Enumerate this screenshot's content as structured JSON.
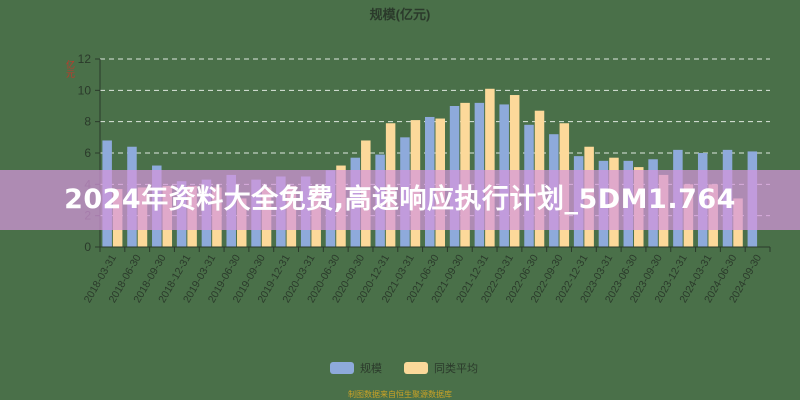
{
  "chart_title": "规模(亿元)",
  "y_unit_label": "亿元",
  "banner": {
    "text": "2024年资料大全免费,高速响应执行计划_5DM1.764"
  },
  "legend": [
    {
      "label": "规模",
      "color": "#8eaadb"
    },
    {
      "label": "同类平均",
      "color": "#fcd99a"
    }
  ],
  "source_text": "制图数据来自恒生聚源数据库",
  "colors": {
    "background": "#4a7049",
    "axis": "#2b3a2b",
    "grid": "#dfe8df",
    "banner": "#d696dc"
  },
  "chart_data": {
    "type": "bar",
    "title": "规模(亿元)",
    "xlabel": "",
    "ylabel": "亿元",
    "ylim": [
      0,
      12
    ],
    "yticks": [
      0,
      2,
      4,
      6,
      8,
      10,
      12
    ],
    "grid": true,
    "legend_position": "bottom",
    "categories": [
      "2018-03-31",
      "2018-06-30",
      "2018-09-30",
      "2018-12-31",
      "2019-03-31",
      "2019-06-30",
      "2019-09-30",
      "2019-12-31",
      "2020-03-31",
      "2020-06-30",
      "2020-09-30",
      "2020-12-31",
      "2021-03-31",
      "2021-06-30",
      "2021-09-30",
      "2021-12-31",
      "2022-03-31",
      "2022-06-30",
      "2022-09-30",
      "2022-12-31",
      "2023-03-31",
      "2023-06-30",
      "2023-09-30",
      "2023-12-31",
      "2024-03-31",
      "2024-06-30",
      "2024-09-30"
    ],
    "series": [
      {
        "name": "规模",
        "color": "#8eaadb",
        "values": [
          6.8,
          6.4,
          5.2,
          4.2,
          4.3,
          4.6,
          4.3,
          4.5,
          4.5,
          4.9,
          5.7,
          5.9,
          7.0,
          8.3,
          9.0,
          9.2,
          9.1,
          7.8,
          7.2,
          5.8,
          5.5,
          5.5,
          5.6,
          6.2,
          6.0,
          6.2,
          6.1
        ]
      },
      {
        "name": "同类平均",
        "color": "#fcd99a",
        "values": [
          3.7,
          3.8,
          3.9,
          3.9,
          3.8,
          3.1,
          3.8,
          3.9,
          3.9,
          5.2,
          6.8,
          7.9,
          8.1,
          8.2,
          9.2,
          10.1,
          9.7,
          8.7,
          7.9,
          6.4,
          5.7,
          5.1,
          4.6,
          4.0,
          4.0,
          3.1,
          null
        ]
      }
    ]
  }
}
